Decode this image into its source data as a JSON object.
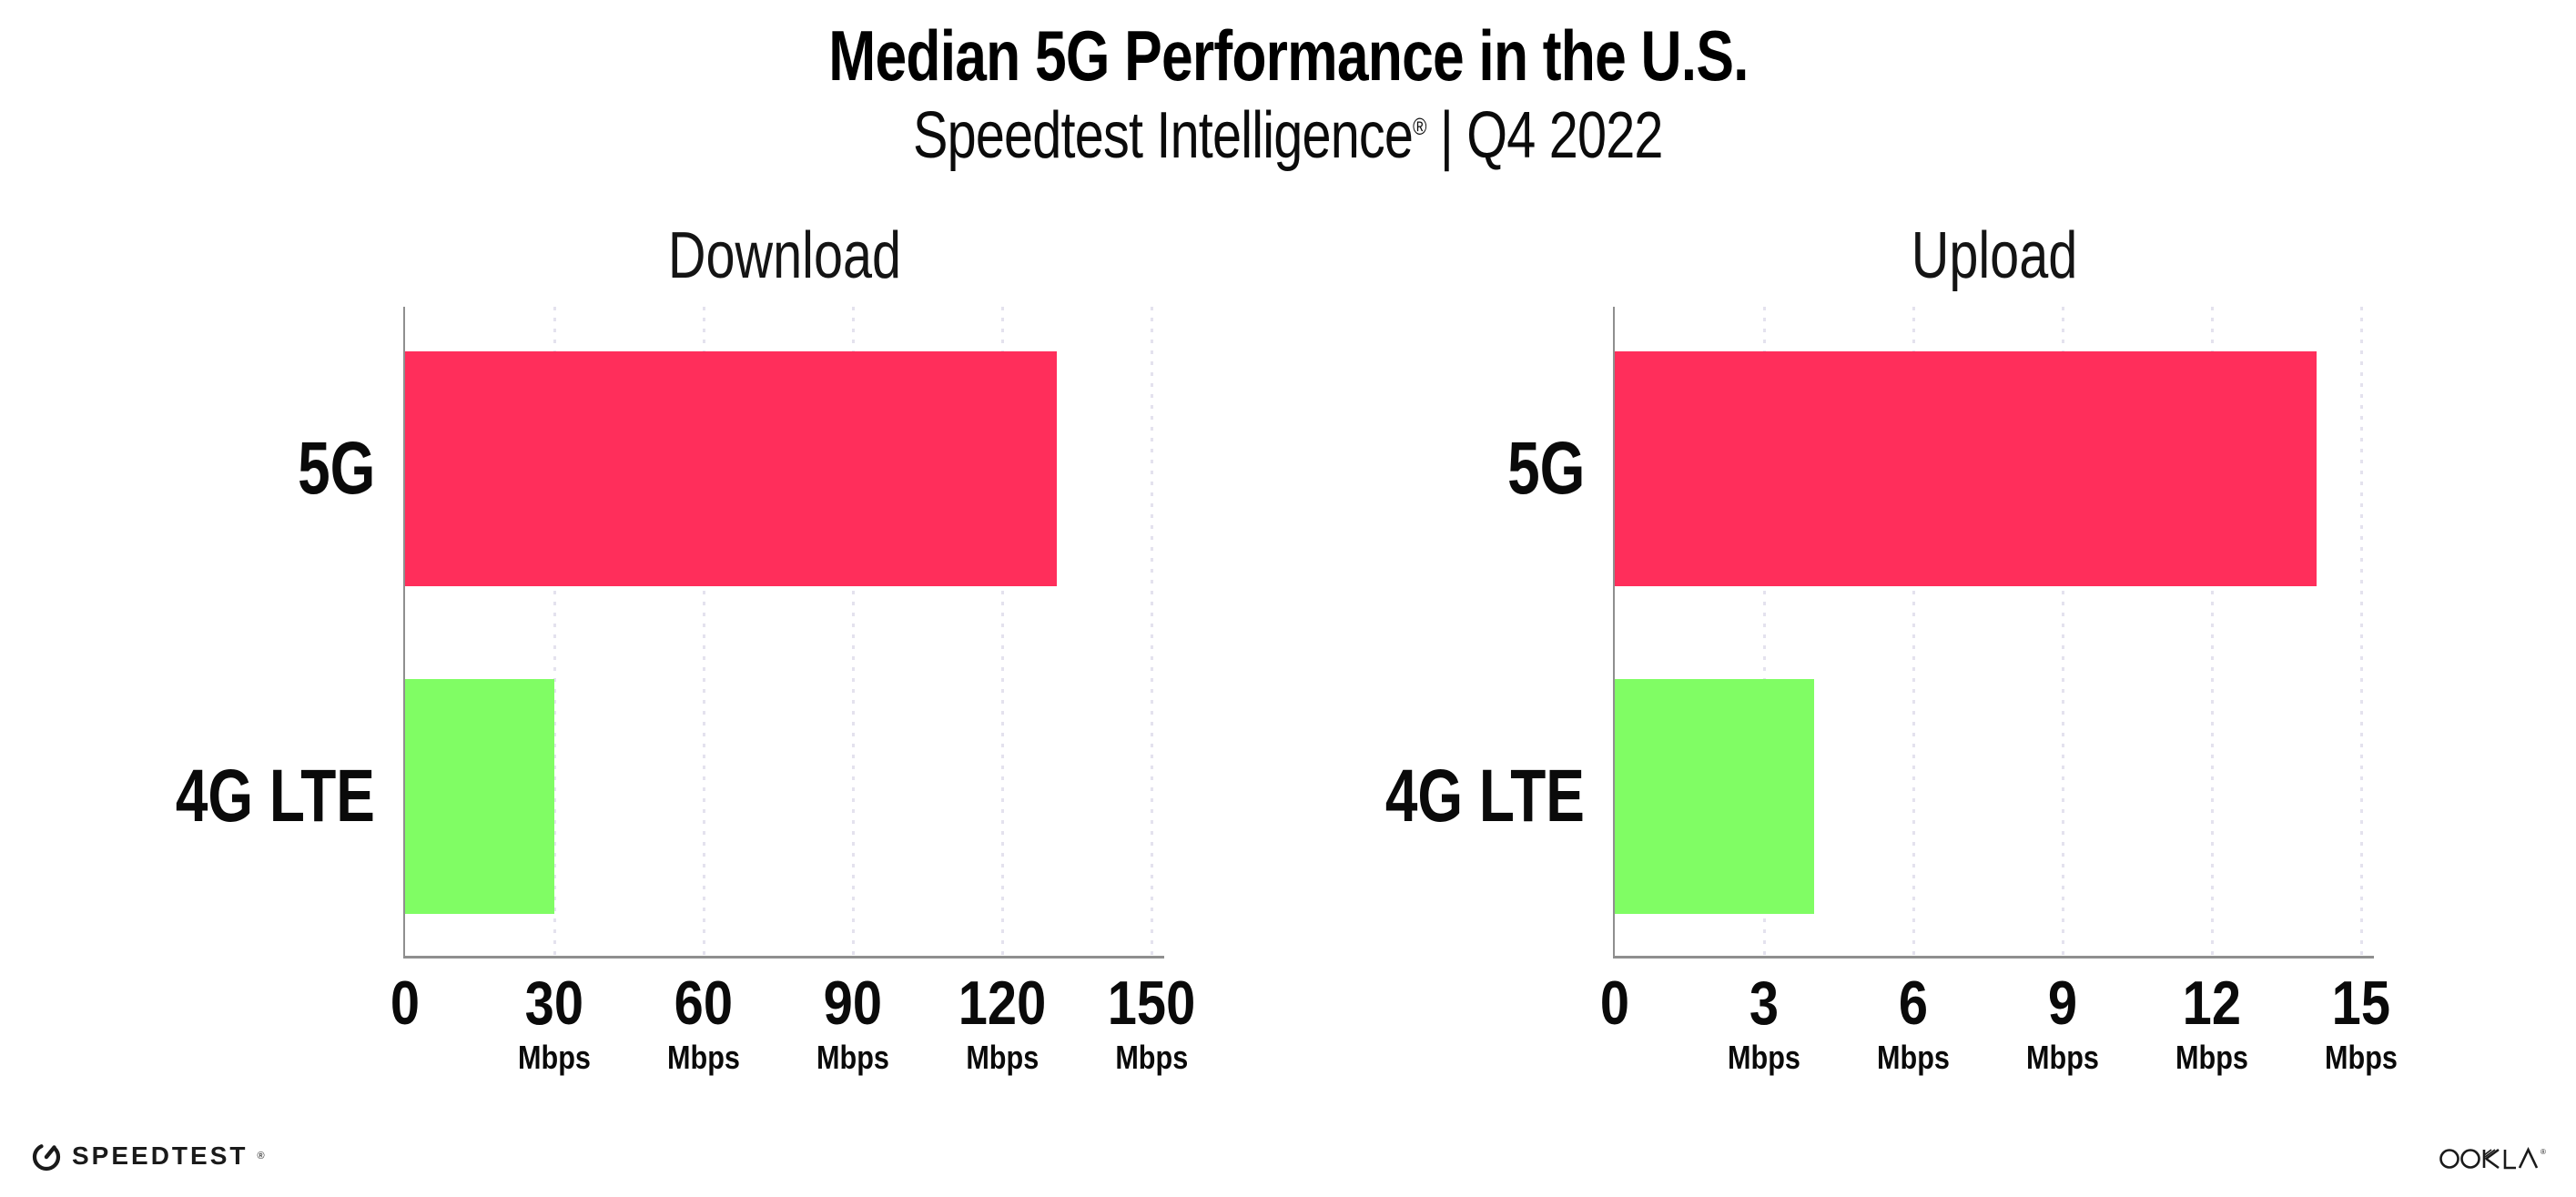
{
  "header": {
    "title": "Median 5G Performance in the U.S.",
    "subtitle_brand": "Speedtest Intelligence",
    "subtitle_reg": "®",
    "subtitle_rest": " | Q4 2022"
  },
  "footer": {
    "speedtest_label": "SPEEDTEST",
    "speedtest_mark": "®",
    "ookla_label": "OOKLA",
    "ookla_mark": "®"
  },
  "colors": {
    "bar_5g": "#ff2e5b",
    "bar_4g_lte": "#80fd64",
    "axis_line": "#8f8f8f",
    "grid_dot": "#e4e2ee",
    "text": "#0a0a0a"
  },
  "chart_data": [
    {
      "type": "bar",
      "orientation": "horizontal",
      "title": "Download",
      "categories": [
        "5G",
        "4G LTE"
      ],
      "values": [
        131,
        30
      ],
      "unit": "Mbps",
      "xlim": [
        0,
        150
      ],
      "ticks": [
        0,
        30,
        60,
        90,
        120,
        150
      ],
      "tick_unit_label": "Mbps",
      "tick_unit_on_zero": false,
      "series_colors": [
        "#ff2e5b",
        "#80fd64"
      ],
      "grid": "vertical-dotted",
      "legend": "none"
    },
    {
      "type": "bar",
      "orientation": "horizontal",
      "title": "Upload",
      "categories": [
        "5G",
        "4G LTE"
      ],
      "values": [
        14.1,
        4.0
      ],
      "unit": "Mbps",
      "xlim": [
        0,
        15
      ],
      "ticks": [
        0,
        3,
        6,
        9,
        12,
        15
      ],
      "tick_unit_label": "Mbps",
      "tick_unit_on_zero": false,
      "series_colors": [
        "#ff2e5b",
        "#80fd64"
      ],
      "grid": "vertical-dotted",
      "legend": "none"
    }
  ]
}
